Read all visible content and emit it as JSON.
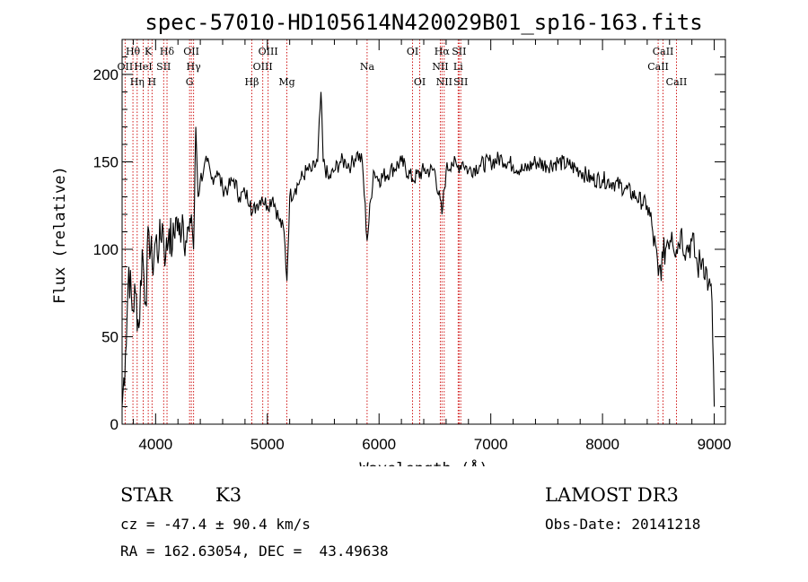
{
  "chart_data": {
    "type": "line",
    "title": "spec-57010-HD105614N420029B01_sp16-163.fits",
    "xlabel": "Wavelength (Å)",
    "ylabel": "Flux (relative)",
    "xlim": [
      3700,
      9100
    ],
    "ylim": [
      0,
      220
    ],
    "xticks": [
      4000,
      5000,
      6000,
      7000,
      8000,
      9000
    ],
    "yticks": [
      0,
      50,
      100,
      150,
      200
    ],
    "series": [
      {
        "name": "flux",
        "x": [
          3700,
          3730,
          3760,
          3790,
          3820,
          3850,
          3880,
          3910,
          3940,
          3970,
          4000,
          4030,
          4060,
          4090,
          4120,
          4150,
          4180,
          4210,
          4240,
          4270,
          4300,
          4320,
          4340,
          4360,
          4380,
          4400,
          4430,
          4460,
          4500,
          4550,
          4600,
          4650,
          4700,
          4750,
          4800,
          4850,
          4861,
          4900,
          4950,
          5000,
          5050,
          5100,
          5150,
          5175,
          5200,
          5250,
          5300,
          5350,
          5400,
          5450,
          5480,
          5500,
          5550,
          5600,
          5650,
          5700,
          5750,
          5800,
          5850,
          5893,
          5950,
          6000,
          6100,
          6200,
          6300,
          6400,
          6500,
          6563,
          6600,
          6650,
          6700,
          6750,
          6800,
          6900,
          7000,
          7100,
          7200,
          7300,
          7400,
          7500,
          7600,
          7700,
          7800,
          7900,
          8000,
          8100,
          8200,
          8300,
          8400,
          8450,
          8500,
          8542,
          8580,
          8620,
          8662,
          8700,
          8750,
          8800,
          8850,
          8900,
          8950,
          8980,
          9000
        ],
        "y": [
          10,
          40,
          90,
          65,
          75,
          55,
          100,
          70,
          110,
          90,
          105,
          100,
          115,
          95,
          112,
          100,
          118,
          108,
          120,
          105,
          110,
          120,
          100,
          170,
          130,
          140,
          145,
          150,
          140,
          145,
          135,
          135,
          140,
          130,
          132,
          128,
          120,
          125,
          130,
          125,
          130,
          118,
          110,
          82,
          130,
          135,
          140,
          145,
          145,
          150,
          190,
          150,
          140,
          145,
          150,
          150,
          148,
          155,
          150,
          105,
          145,
          140,
          145,
          150,
          140,
          145,
          145,
          120,
          145,
          150,
          147,
          150,
          145,
          148,
          150,
          152,
          148,
          145,
          150,
          148,
          150,
          148,
          145,
          140,
          140,
          138,
          135,
          130,
          125,
          110,
          85,
          95,
          105,
          110,
          100,
          110,
          100,
          105,
          90,
          95,
          80,
          70,
          10
        ]
      }
    ]
  },
  "spectral_lines": [
    {
      "label": "Hθ",
      "wl": 3797,
      "row": 1
    },
    {
      "label": "K",
      "wl": 3934,
      "row": 1
    },
    {
      "label": "Hδ",
      "wl": 4102,
      "row": 1
    },
    {
      "label": "OII",
      "wl": 4320,
      "row": 1
    },
    {
      "label": "OIII",
      "wl": 5007,
      "row": 1
    },
    {
      "label": "OI",
      "wl": 6300,
      "row": 1
    },
    {
      "label": "Hα",
      "wl": 6563,
      "row": 1
    },
    {
      "label": "SII",
      "wl": 6716,
      "row": 1
    },
    {
      "label": "CaII",
      "wl": 8542,
      "row": 1
    },
    {
      "label": "OII",
      "wl": 3727,
      "row": 2
    },
    {
      "label": "HeI",
      "wl": 3889,
      "row": 2
    },
    {
      "label": "SII",
      "wl": 4072,
      "row": 2
    },
    {
      "label": "Hγ",
      "wl": 4340,
      "row": 2
    },
    {
      "label": "OIII",
      "wl": 4959,
      "row": 2
    },
    {
      "label": "Na",
      "wl": 5893,
      "row": 2
    },
    {
      "label": "NII",
      "wl": 6548,
      "row": 2
    },
    {
      "label": "Li",
      "wl": 6708,
      "row": 2
    },
    {
      "label": "CaII",
      "wl": 8498,
      "row": 2
    },
    {
      "label": "Hη",
      "wl": 3835,
      "row": 3
    },
    {
      "label": "H",
      "wl": 3968,
      "row": 3
    },
    {
      "label": "G",
      "wl": 4304,
      "row": 3
    },
    {
      "label": "Hβ",
      "wl": 4861,
      "row": 3
    },
    {
      "label": "Mg",
      "wl": 5175,
      "row": 3
    },
    {
      "label": "OI",
      "wl": 6364,
      "row": 3
    },
    {
      "label": "NII",
      "wl": 6583,
      "row": 3
    },
    {
      "label": "SII",
      "wl": 6731,
      "row": 3
    },
    {
      "label": "CaII",
      "wl": 8662,
      "row": 3
    }
  ],
  "info": {
    "object_class": "STAR",
    "subclass": "K3",
    "survey": "LAMOST DR3",
    "cz": "cz = -47.4 ± 90.4 km/s",
    "obs_date": "Obs-Date: 20141218",
    "radec": "RA = 162.63054, DEC =  43.49638"
  },
  "colors": {
    "line_marker": "#cc0000",
    "spectrum": "#000000"
  }
}
